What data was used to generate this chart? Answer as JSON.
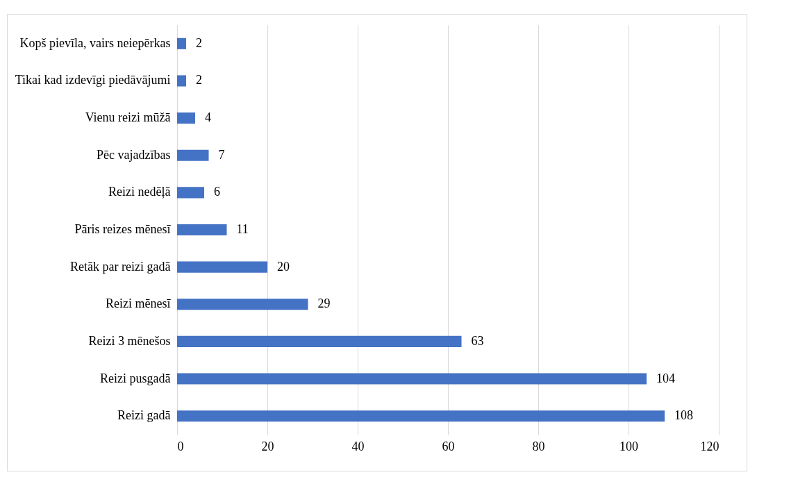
{
  "chart_data": {
    "type": "bar",
    "orientation": "horizontal",
    "categories": [
      "Kopš pievīla, vairs neiepērkas",
      "Tikai kad izdevīgi piedāvājumi",
      "Vienu reizi mūžā",
      "Pēc vajadzības",
      "Reizi nedēļā",
      "Pāris reizes mēnesī",
      "Retāk par reizi gadā",
      "Reizi mēnesī",
      "Reizi 3 mēnešos",
      "Reizi pusgadā",
      "Reizi gadā"
    ],
    "values": [
      2,
      2,
      4,
      7,
      6,
      11,
      20,
      29,
      63,
      104,
      108
    ],
    "color": "#4472c4",
    "xlim": [
      0,
      120
    ],
    "xticks": [
      0,
      20,
      40,
      60,
      80,
      100,
      120
    ],
    "grid": "x",
    "data_labels": true
  }
}
